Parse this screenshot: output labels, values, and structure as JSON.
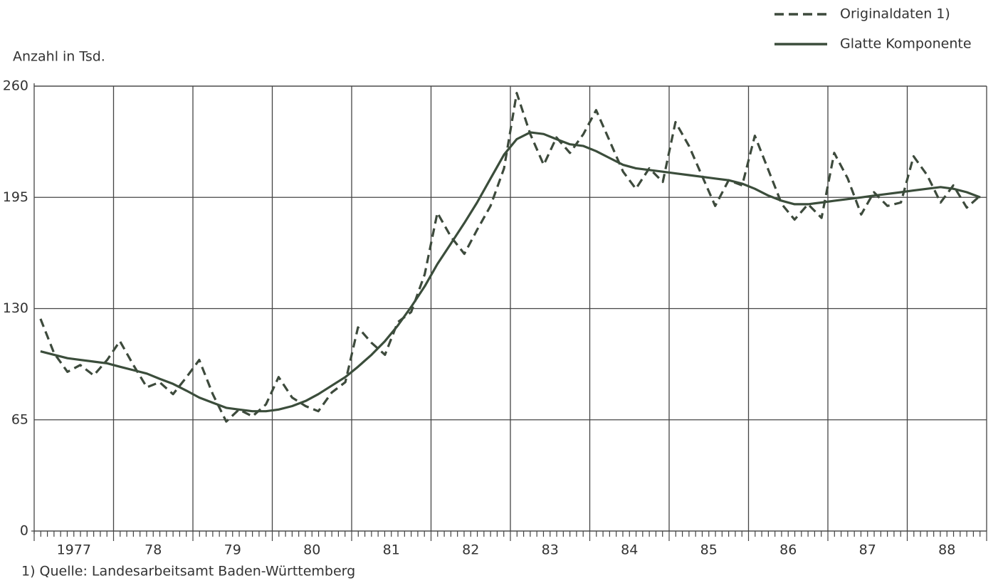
{
  "chart_data": {
    "type": "line",
    "y_label": "Anzahl in Tsd.",
    "footnote": "1) Quelle: Landesarbeitsamt Baden-Württemberg",
    "x": [
      1977.08,
      1977.25,
      1977.42,
      1977.58,
      1977.75,
      1977.92,
      1978.08,
      1978.25,
      1978.42,
      1978.58,
      1978.75,
      1978.92,
      1979.08,
      1979.25,
      1979.42,
      1979.58,
      1979.75,
      1979.92,
      1980.08,
      1980.25,
      1980.42,
      1980.58,
      1980.75,
      1980.92,
      1981.08,
      1981.25,
      1981.42,
      1981.58,
      1981.75,
      1981.92,
      1982.08,
      1982.25,
      1982.42,
      1982.58,
      1982.75,
      1982.92,
      1983.08,
      1983.25,
      1983.42,
      1983.58,
      1983.75,
      1983.92,
      1984.08,
      1984.25,
      1984.42,
      1984.58,
      1984.75,
      1984.92,
      1985.08,
      1985.25,
      1985.42,
      1985.58,
      1985.75,
      1985.92,
      1986.08,
      1986.25,
      1986.42,
      1986.58,
      1986.75,
      1986.92,
      1987.08,
      1987.25,
      1987.42,
      1987.58,
      1987.75,
      1987.92,
      1988.08,
      1988.25,
      1988.42,
      1988.58,
      1988.75,
      1988.92
    ],
    "series": [
      {
        "name": "Originaldaten 1)",
        "color": "#3d4a3c",
        "dashed": true,
        "values": [
          124,
          104,
          93,
          97,
          91,
          100,
          111,
          97,
          84,
          87,
          80,
          90,
          100,
          80,
          64,
          71,
          67,
          74,
          90,
          78,
          73,
          70,
          81,
          87,
          119,
          110,
          103,
          122,
          128,
          150,
          186,
          172,
          162,
          176,
          190,
          212,
          256,
          232,
          214,
          230,
          221,
          232,
          246,
          228,
          210,
          200,
          212,
          204,
          239,
          225,
          207,
          190,
          205,
          202,
          231,
          211,
          191,
          182,
          191,
          183,
          221,
          206,
          185,
          198,
          190,
          192,
          219,
          208,
          192,
          202,
          189,
          196
        ]
      },
      {
        "name": "Glatte Komponente",
        "color": "#3b4d3b",
        "dashed": false,
        "values": [
          105,
          103,
          101,
          100,
          99,
          98,
          96,
          94,
          92,
          89,
          86,
          82,
          78,
          75,
          72,
          71,
          70,
          70,
          71,
          73,
          76,
          80,
          85,
          90,
          96,
          103,
          111,
          120,
          131,
          143,
          156,
          168,
          180,
          192,
          206,
          220,
          229,
          233,
          232,
          229,
          226,
          225,
          222,
          218,
          214,
          212,
          211,
          210,
          209,
          208,
          207,
          206,
          205,
          203,
          200,
          196,
          193,
          191,
          191,
          192,
          193,
          194,
          195,
          196,
          197,
          198,
          199,
          200,
          201,
          200,
          198,
          195
        ]
      }
    ],
    "xlim": [
      1977,
      1989
    ],
    "xticks": [
      {
        "value": 1977.5,
        "label": "1977"
      },
      {
        "value": 1978.5,
        "label": "78"
      },
      {
        "value": 1979.5,
        "label": "79"
      },
      {
        "value": 1980.5,
        "label": "80"
      },
      {
        "value": 1981.5,
        "label": "81"
      },
      {
        "value": 1982.5,
        "label": "82"
      },
      {
        "value": 1983.5,
        "label": "83"
      },
      {
        "value": 1984.5,
        "label": "84"
      },
      {
        "value": 1985.5,
        "label": "85"
      },
      {
        "value": 1986.5,
        "label": "86"
      },
      {
        "value": 1987.5,
        "label": "87"
      },
      {
        "value": 1988.5,
        "label": "88"
      }
    ],
    "ylim": [
      0,
      260
    ],
    "yticks": [
      0,
      65,
      130,
      195,
      260
    ],
    "grid": true,
    "legend": "top-right"
  }
}
